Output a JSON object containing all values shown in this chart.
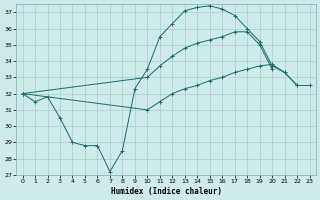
{
  "xlabel": "Humidex (Indice chaleur)",
  "background_color": "#ceeaea",
  "grid_color": "#aacccc",
  "line_color": "#1a6b6b",
  "xlim": [
    -0.5,
    23.5
  ],
  "ylim": [
    27,
    37.5
  ],
  "yticks": [
    27,
    28,
    29,
    30,
    31,
    32,
    33,
    34,
    35,
    36,
    37
  ],
  "xticks": [
    0,
    1,
    2,
    3,
    4,
    5,
    6,
    7,
    8,
    9,
    10,
    11,
    12,
    13,
    14,
    15,
    16,
    17,
    18,
    19,
    20,
    21,
    22,
    23
  ],
  "s1_x": [
    0,
    1,
    2,
    3,
    4,
    5,
    6,
    7,
    8,
    9,
    10,
    11,
    12,
    13,
    14,
    15,
    16,
    17,
    18,
    19,
    20,
    21,
    22
  ],
  "s1_y": [
    32.0,
    31.5,
    31.8,
    30.5,
    29.0,
    28.8,
    28.8,
    27.2,
    28.5,
    32.3,
    33.5,
    35.5,
    36.3,
    37.1,
    37.3,
    37.4,
    37.2,
    36.8,
    36.0,
    35.2,
    33.7,
    33.3,
    32.5
  ],
  "s2_x": [
    0,
    10,
    11,
    12,
    13,
    14,
    15,
    16,
    17,
    18,
    19,
    20
  ],
  "s2_y": [
    32.0,
    33.0,
    33.7,
    34.3,
    34.8,
    35.1,
    35.3,
    35.5,
    35.8,
    35.8,
    35.0,
    33.5
  ],
  "s3_x": [
    0,
    10,
    11,
    12,
    13,
    14,
    15,
    16,
    17,
    18,
    19,
    20,
    21,
    22,
    23
  ],
  "s3_y": [
    32.0,
    31.0,
    31.5,
    32.0,
    32.3,
    32.5,
    32.8,
    33.0,
    33.3,
    33.5,
    33.7,
    33.8,
    33.3,
    32.5,
    32.5
  ]
}
